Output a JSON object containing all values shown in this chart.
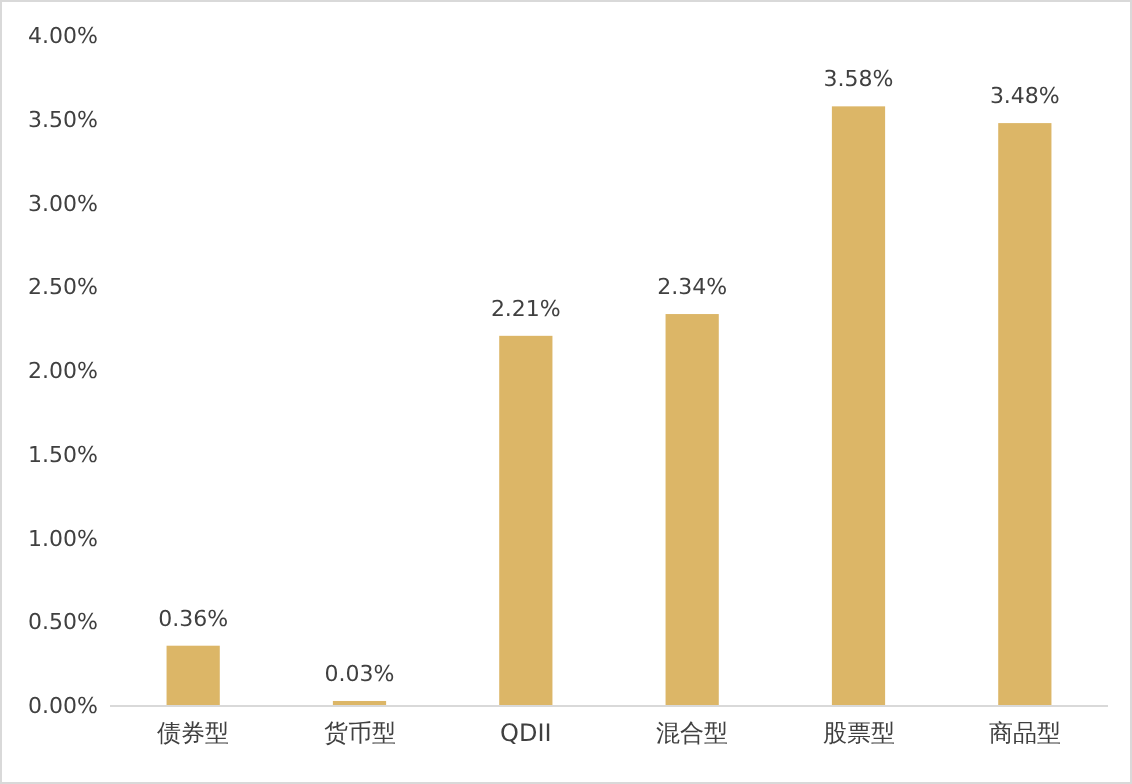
{
  "chart_data": {
    "type": "bar",
    "categories": [
      "债券型",
      "货币型",
      "QDII",
      "混合型",
      "股票型",
      "商品型"
    ],
    "values": [
      0.36,
      0.03,
      2.21,
      2.34,
      3.58,
      3.48
    ],
    "value_labels": [
      "0.36%",
      "0.03%",
      "2.21%",
      "2.34%",
      "3.58%",
      "3.48%"
    ],
    "color": "#dcb667",
    "ylim": [
      0,
      4
    ],
    "yticks": [
      {
        "value": 0,
        "label": "0.00%"
      },
      {
        "value": 0.5,
        "label": "0.50%"
      },
      {
        "value": 1,
        "label": "1.00%"
      },
      {
        "value": 1.5,
        "label": "1.50%"
      },
      {
        "value": 2,
        "label": "2.00%"
      },
      {
        "value": 2.5,
        "label": "2.50%"
      },
      {
        "value": 3,
        "label": "3.00%"
      },
      {
        "value": 3.5,
        "label": "3.50%"
      },
      {
        "value": 4,
        "label": "4.00%"
      }
    ],
    "grid": false
  }
}
